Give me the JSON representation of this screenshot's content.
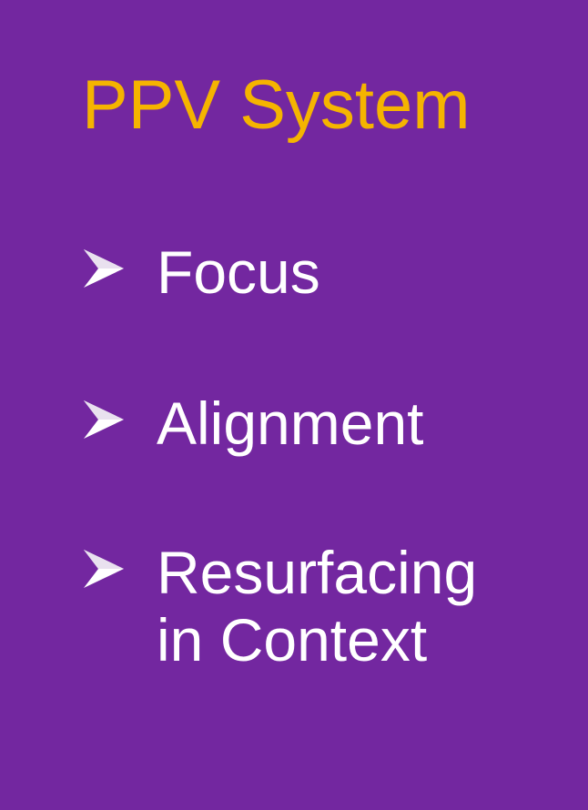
{
  "slide": {
    "title": "PPV System",
    "colors": {
      "background": "#7327a0",
      "title": "#f5b400",
      "text": "#ffffff"
    },
    "bullet_icon": "arrowhead-bullet-icon",
    "items": [
      {
        "label": "Focus"
      },
      {
        "label": "Alignment"
      },
      {
        "label": "Resurfacing\nin Context"
      }
    ]
  }
}
